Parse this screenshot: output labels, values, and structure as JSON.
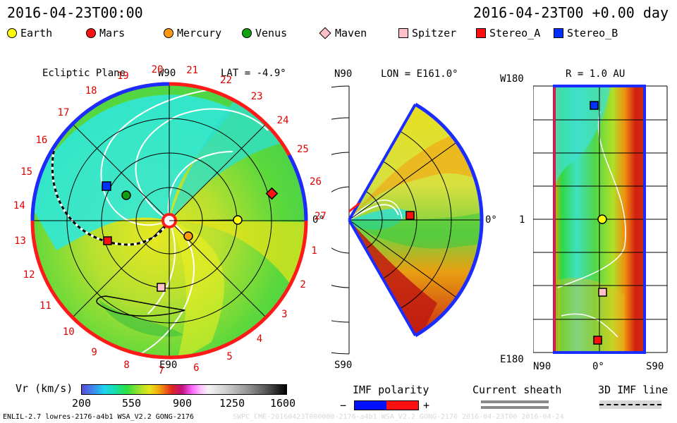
{
  "header": {
    "left_timestamp": "2016-04-23T00:00",
    "right_timestamp": "2016-04-23T00 +0.00 day"
  },
  "legend": {
    "items": [
      {
        "label": "Earth",
        "color": "#ffff00",
        "shape": "circle"
      },
      {
        "label": "Mars",
        "color": "#ff1010",
        "shape": "circle"
      },
      {
        "label": "Mercury",
        "color": "#ff9a10",
        "shape": "circle"
      },
      {
        "label": "Venus",
        "color": "#10a010",
        "shape": "circle"
      },
      {
        "label": "Maven",
        "color": "#ffc0c8",
        "shape": "diamond"
      },
      {
        "label": "Spitzer",
        "color": "#ffc0c8",
        "shape": "square"
      },
      {
        "label": "Stereo_A",
        "color": "#ff1010",
        "shape": "square"
      },
      {
        "label": "Stereo_B",
        "color": "#0030ff",
        "shape": "square"
      }
    ]
  },
  "ecliptic_panel": {
    "title": "Ecliptic Plane",
    "lat_label": "LAT = -4.9°",
    "top_label": "W90",
    "bottom_label": "E90",
    "right_label": "0°",
    "carrington_labels": [
      "19",
      "20",
      "21",
      "22",
      "23",
      "24",
      "25",
      "26",
      "27",
      "1",
      "2",
      "3",
      "4",
      "5",
      "6",
      "7",
      "8",
      "9",
      "10",
      "11",
      "12",
      "13",
      "14",
      "15",
      "16",
      "17",
      "18"
    ]
  },
  "meridional_panel": {
    "top_left": "N90",
    "lon_label": "LON = E161.0°",
    "bottom_left": "S90",
    "right_label": "0°"
  },
  "radial_panel": {
    "top_left": "W180",
    "r_label": "R = 1.0 AU",
    "mid_left": "1",
    "bottom_left": "E180",
    "x_left": "N90",
    "x_mid": "0°",
    "x_right": "S90"
  },
  "footer": {
    "colorbar_title": "Vr (km/s)",
    "colorbar_ticks": [
      "200",
      "550",
      "900",
      "1250",
      "1600"
    ],
    "imf_title": "IMF polarity",
    "imf_minus": "−",
    "imf_plus": "+",
    "sheath_title": "Current sheath",
    "imf3d_title": "3D IMF line",
    "model_info": "ENLIL-2.7 lowres-2176-a4b1 WSA_V2.2 GONG-2176",
    "run_info": "SWPC_CME-20160423T000000-2176-a4b1 WSA_V2.2 GONG-2176 2016-04-23T00 2016-04-24"
  },
  "colors": {
    "earth": "#ffff00",
    "mars": "#ff1010",
    "mercury": "#ff9a10",
    "venus": "#10a010",
    "maven": "#ffc0c8",
    "spitzer": "#ffc0c8",
    "stereo_a": "#ff1010",
    "stereo_b": "#0030ff"
  }
}
